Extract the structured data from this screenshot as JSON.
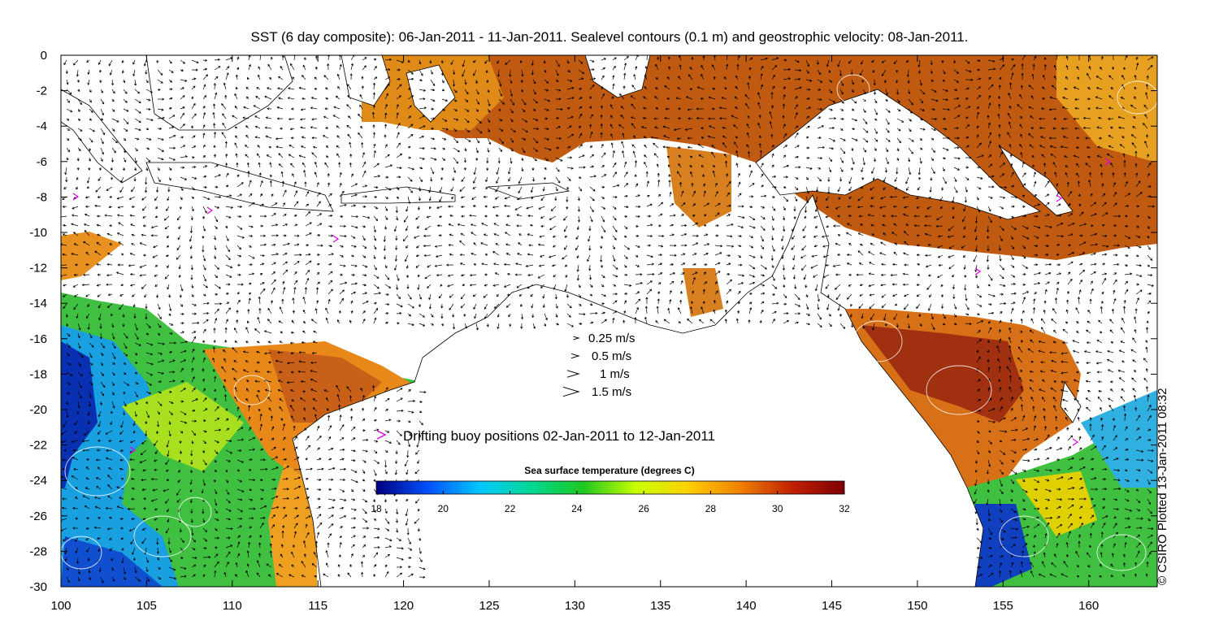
{
  "title": "SST (6 day composite): 06-Jan-2011 - 11-Jan-2011. Sealevel contours (0.1 m) and geostrophic velocity: 08-Jan-2011.",
  "credit": "© CSIRO Plotted 13-Jan-2011 08:32",
  "axes": {
    "x_ticks": [
      "100",
      "105",
      "110",
      "115",
      "120",
      "125",
      "130",
      "135",
      "140",
      "145",
      "150",
      "155",
      "160"
    ],
    "y_ticks": [
      "0",
      "-2",
      "-4",
      "-6",
      "-8",
      "-10",
      "-12",
      "-14",
      "-16",
      "-18",
      "-20",
      "-22",
      "-24",
      "-26",
      "-28",
      "-30"
    ],
    "xlim": [
      100,
      164
    ],
    "ylim": [
      -30,
      0
    ]
  },
  "velocity_legend": [
    {
      "label": "0.25 m/s",
      "speed": 0.25
    },
    {
      "label": "0.5 m/s",
      "speed": 0.5
    },
    {
      "label": "1 m/s",
      "speed": 1
    },
    {
      "label": "1.5 m/s",
      "speed": 1.5
    }
  ],
  "buoy_legend": {
    "symbol": ">",
    "label": "Drifting buoy positions 02-Jan-2011 to 12-Jan-2011",
    "color": "#e000e0"
  },
  "colorbar": {
    "title": "Sea surface temperature (degrees C)",
    "ticks": [
      "18",
      "20",
      "22",
      "24",
      "26",
      "28",
      "30",
      "32"
    ],
    "range": [
      18,
      32
    ],
    "stops": [
      "#00007f",
      "#0050ff",
      "#00c8ff",
      "#00d890",
      "#20c820",
      "#c8ff00",
      "#ffd000",
      "#f08000",
      "#c02000",
      "#7f0000"
    ]
  }
}
